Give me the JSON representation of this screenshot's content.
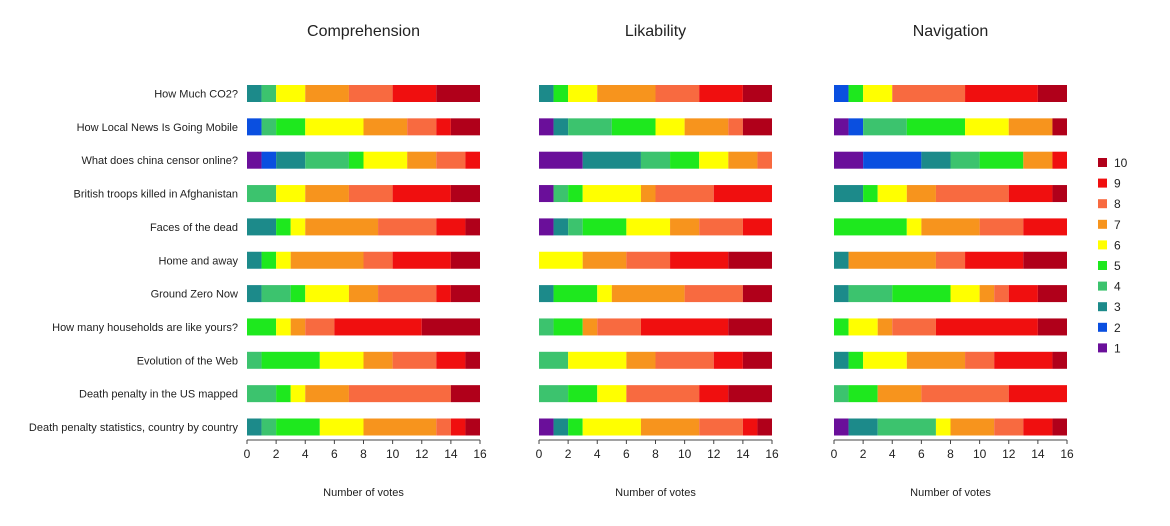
{
  "chart_data": {
    "type": "bar",
    "orientation": "horizontal",
    "stacked": true,
    "categories": [
      "How Much CO2?",
      "How Local News Is Going Mobile",
      "What does china censor online?",
      "British troops killed in Afghanistan",
      "Faces of the dead",
      "Home and away",
      "Ground Zero Now",
      "How many households are like yours?",
      "Evolution of the Web",
      "Death penalty in the US mapped",
      "Death penalty statistics, country by country"
    ],
    "xlim": [
      0,
      16
    ],
    "xticks": [
      0,
      2,
      4,
      6,
      8,
      10,
      12,
      14,
      16
    ],
    "grid": false,
    "legend_position": "right",
    "legend": [
      {
        "name": "10",
        "color": "#b0001a"
      },
      {
        "name": "9",
        "color": "#f00f0f"
      },
      {
        "name": "8",
        "color": "#f86a40"
      },
      {
        "name": "7",
        "color": "#f7941d"
      },
      {
        "name": "6",
        "color": "#ffff00"
      },
      {
        "name": "5",
        "color": "#1ee81e"
      },
      {
        "name": "4",
        "color": "#3cc36e"
      },
      {
        "name": "3",
        "color": "#1c8a8a"
      },
      {
        "name": "2",
        "color": "#0a4fe0"
      },
      {
        "name": "1",
        "color": "#6a0f9a"
      }
    ],
    "panels": [
      {
        "title": "Comprehension",
        "xlabel": "Number of votes",
        "rows": [
          [
            0,
            0,
            1,
            1,
            0,
            2,
            3,
            3,
            3,
            3
          ],
          [
            0,
            1,
            0,
            1,
            2,
            4,
            3,
            2,
            1,
            2
          ],
          [
            1,
            1,
            2,
            3,
            1,
            3,
            2,
            2,
            1,
            0
          ],
          [
            0,
            0,
            0,
            2,
            0,
            2,
            3,
            3,
            4,
            2
          ],
          [
            0,
            0,
            2,
            0,
            1,
            1,
            5,
            4,
            2,
            1
          ],
          [
            0,
            0,
            1,
            0,
            1,
            1,
            5,
            2,
            4,
            2
          ],
          [
            0,
            0,
            1,
            2,
            1,
            3,
            2,
            4,
            1,
            2
          ],
          [
            0,
            0,
            0,
            0,
            2,
            1,
            1,
            2,
            6,
            4
          ],
          [
            0,
            0,
            0,
            1,
            4,
            3,
            2,
            3,
            2,
            1
          ],
          [
            0,
            0,
            0,
            2,
            1,
            1,
            3,
            7,
            0,
            2
          ],
          [
            0,
            0,
            1,
            1,
            3,
            3,
            5,
            1,
            1,
            1
          ]
        ]
      },
      {
        "title": "Likability",
        "xlabel": "Number of votes",
        "rows": [
          [
            0,
            0,
            1,
            0,
            1,
            2,
            4,
            3,
            3,
            2
          ],
          [
            1,
            0,
            1,
            3,
            3,
            2,
            3,
            1,
            0,
            2
          ],
          [
            3,
            0,
            4,
            2,
            2,
            2,
            2,
            1,
            0,
            0
          ],
          [
            1,
            0,
            0,
            1,
            1,
            4,
            1,
            4,
            4,
            0
          ],
          [
            1,
            0,
            1,
            1,
            3,
            3,
            2,
            3,
            2,
            0
          ],
          [
            0,
            0,
            0,
            0,
            0,
            3,
            3,
            3,
            4,
            3
          ],
          [
            0,
            0,
            1,
            0,
            3,
            1,
            5,
            4,
            0,
            2
          ],
          [
            0,
            0,
            0,
            1,
            2,
            0,
            1,
            3,
            6,
            3
          ],
          [
            0,
            0,
            0,
            2,
            0,
            4,
            2,
            4,
            2,
            2
          ],
          [
            0,
            0,
            0,
            2,
            2,
            2,
            0,
            5,
            2,
            3
          ],
          [
            1,
            0,
            1,
            0,
            1,
            4,
            4,
            3,
            1,
            1
          ]
        ]
      },
      {
        "title": "Navigation",
        "xlabel": "Number of votes",
        "rows": [
          [
            0,
            1,
            0,
            0,
            1,
            2,
            0,
            5,
            5,
            2
          ],
          [
            1,
            1,
            0,
            3,
            4,
            3,
            3,
            0,
            0,
            1
          ],
          [
            2,
            4,
            2,
            2,
            3,
            0,
            2,
            0,
            1,
            0
          ],
          [
            0,
            0,
            2,
            0,
            1,
            2,
            2,
            5,
            3,
            1
          ],
          [
            0,
            0,
            0,
            0,
            5,
            1,
            4,
            3,
            3,
            0
          ],
          [
            0,
            0,
            1,
            0,
            0,
            0,
            6,
            2,
            4,
            3
          ],
          [
            0,
            0,
            1,
            3,
            4,
            2,
            1,
            1,
            2,
            2
          ],
          [
            0,
            0,
            0,
            0,
            1,
            2,
            1,
            3,
            7,
            2
          ],
          [
            0,
            0,
            1,
            0,
            1,
            3,
            4,
            2,
            4,
            1
          ],
          [
            0,
            0,
            0,
            1,
            2,
            0,
            3,
            6,
            4,
            0
          ],
          [
            1,
            0,
            2,
            4,
            0,
            1,
            3,
            2,
            2,
            1
          ]
        ]
      }
    ]
  }
}
